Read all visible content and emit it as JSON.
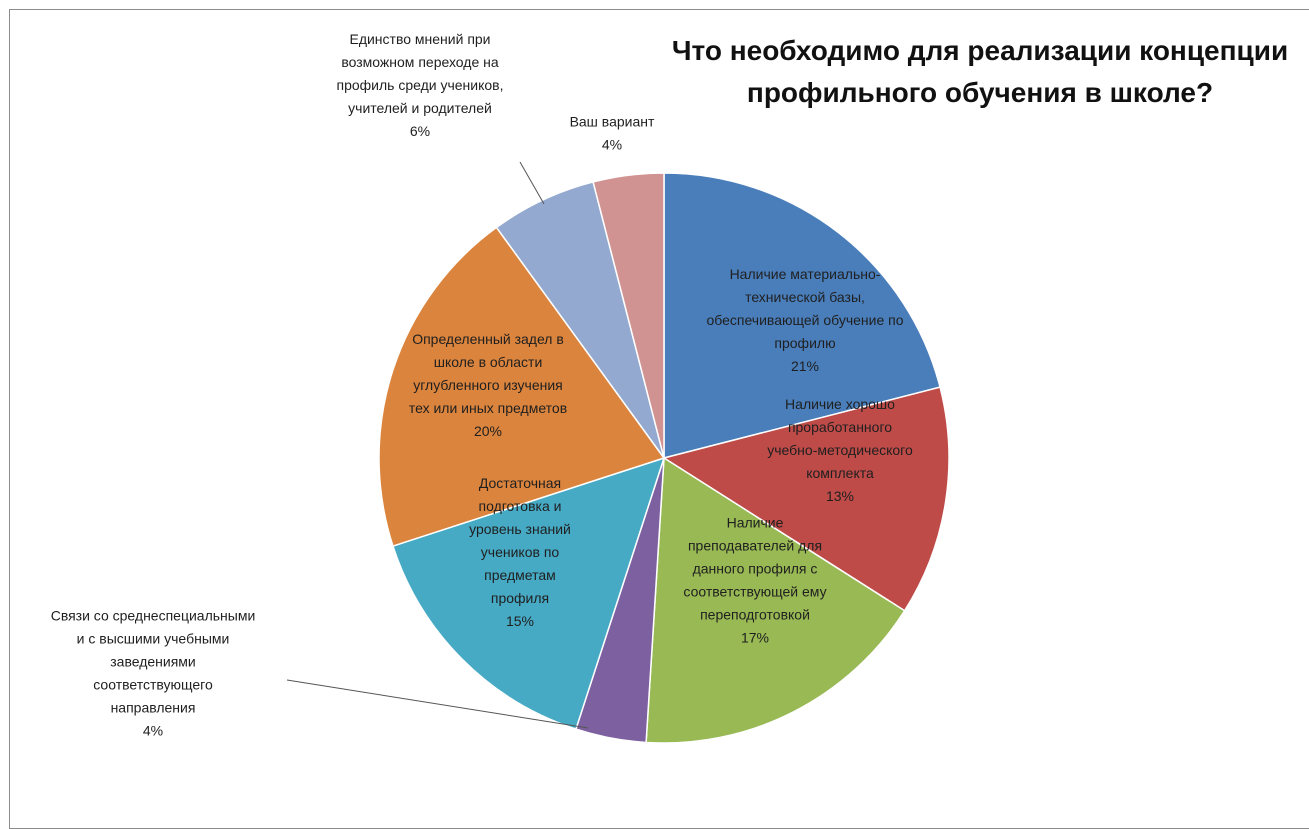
{
  "chart_data": {
    "type": "pie",
    "title": "Что необходимо для реализации  концепции\nпрофильного  обучения в школе?",
    "slices": [
      {
        "label": "Наличие материально-\nтехнической базы,\nобеспечивающей обучение по\nпрофилю",
        "value": 21,
        "value_label": "21%",
        "color": "#4A7EBB"
      },
      {
        "label": "Наличие хорошо\nпроработанного\nучебно-методического\nкомплекта",
        "value": 13,
        "value_label": "13%",
        "color": "#BE4B48"
      },
      {
        "label": "Наличие\nпреподавателей для\nданного профиля с\nсоответствующей ему\nпереподготовкой",
        "value": 17,
        "value_label": "17%",
        "color": "#98B954"
      },
      {
        "label": "Связи со среднеспециальными\nи с высшими учебными\nзаведениями\nсоответствующего\nнаправления",
        "value": 4,
        "value_label": "4%",
        "color": "#7D60A0"
      },
      {
        "label": "Достаточная\nподготовка и\nуровень знаний\nучеников по\nпредметам\nпрофиля",
        "value": 15,
        "value_label": "15%",
        "color": "#46AAC5"
      },
      {
        "label": "Определенный задел в\nшколе в области\nуглубленного изучения\nтех или иных предметов",
        "value": 20,
        "value_label": "20%",
        "color": "#DB843D"
      },
      {
        "label": "Единство мнений при\nвозможном переходе на\nпрофиль среди учеников,\nучителей и родителей",
        "value": 6,
        "value_label": "6%",
        "color": "#93A9CF"
      },
      {
        "label": "Ваш вариант",
        "value": 4,
        "value_label": "4%",
        "color": "#D19392"
      }
    ]
  }
}
